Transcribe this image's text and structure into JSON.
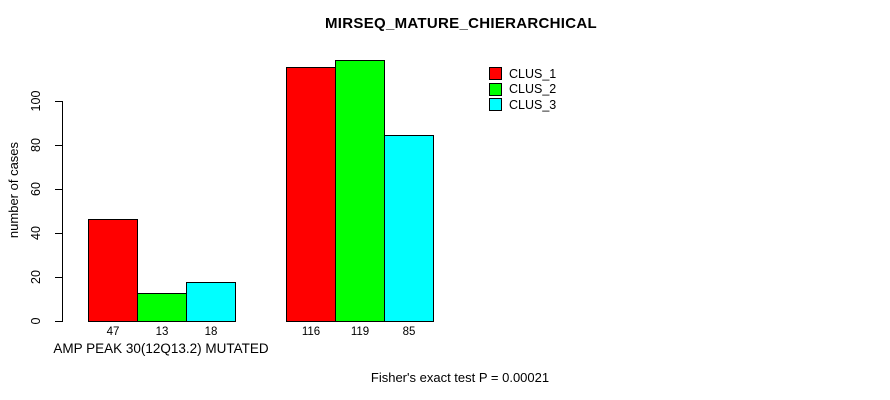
{
  "chart_data": {
    "type": "bar",
    "title": "MIRSEQ_MATURE_CHIERARCHICAL",
    "xlabel": "AMP PEAK 30(12Q13.2) MUTATED",
    "ylabel": "number of cases",
    "ylim": [
      0,
      100
    ],
    "yticks": [
      0,
      20,
      40,
      60,
      80,
      100
    ],
    "grid": false,
    "legend_position": "top-right",
    "categories": [
      "AMP PEAK 30(12Q13.2) MUTATED",
      ""
    ],
    "series": [
      {
        "name": "CLUS_1",
        "color": "#FF0000",
        "values": [
          47,
          116
        ]
      },
      {
        "name": "CLUS_2",
        "color": "#00FF00",
        "values": [
          13,
          119
        ]
      },
      {
        "name": "CLUS_3",
        "color": "#00FFFF",
        "values": [
          18,
          85
        ]
      }
    ],
    "bar_value_labels": [
      [
        47,
        13,
        18
      ],
      [
        116,
        119,
        85
      ]
    ],
    "annotation": "Fisher's exact test P = 0.00021"
  }
}
